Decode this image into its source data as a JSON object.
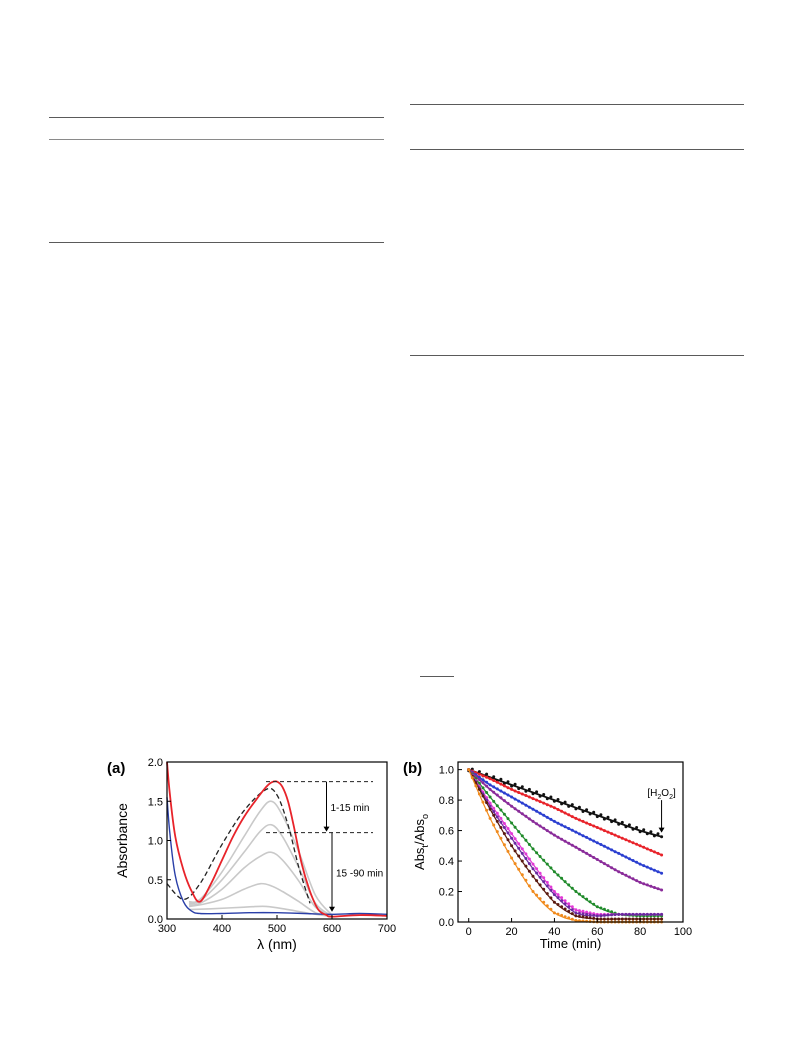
{
  "figure": {
    "panels": [
      {
        "label": "(a)",
        "chart_data": {
          "type": "line",
          "xlabel": "λ (nm)",
          "ylabel": "Absorbance",
          "xlim": [
            300,
            700
          ],
          "ylim": [
            0,
            2.0
          ],
          "xticks": [
            300,
            400,
            500,
            600,
            700
          ],
          "yticks": [
            0.0,
            0.5,
            1.0,
            1.5,
            2.0
          ],
          "annotations": [
            "1-15 min",
            "15 -90 min"
          ],
          "colors": {
            "final": "#e8232a",
            "blue": "#2a3fa8",
            "gray": "#c9c9c9",
            "dashed": "#222222"
          },
          "series": [
            {
              "style": "dashed",
              "x": [
                300,
                330,
                360,
                400,
                440,
                480,
                500,
                520,
                540,
                560
              ],
              "y": [
                0.45,
                0.25,
                0.45,
                0.95,
                1.38,
                1.65,
                1.58,
                1.2,
                0.65,
                0.2
              ]
            },
            {
              "style": "red",
              "x": [
                300,
                305,
                315,
                330,
                345,
                360,
                380,
                400,
                420,
                440,
                460,
                480,
                490,
                500,
                510,
                520,
                530,
                545,
                560,
                575,
                590,
                600,
                650,
                700
              ],
              "y": [
                2.0,
                1.6,
                1.05,
                0.62,
                0.35,
                0.22,
                0.45,
                0.75,
                1.05,
                1.3,
                1.5,
                1.68,
                1.74,
                1.75,
                1.68,
                1.5,
                1.2,
                0.7,
                0.35,
                0.12,
                0.05,
                0.03,
                0.05,
                0.04
              ]
            },
            {
              "style": "gray",
              "x": [
                340,
                360,
                400,
                440,
                470,
                490,
                510,
                540,
                570,
                600
              ],
              "y": [
                0.22,
                0.25,
                0.6,
                1.05,
                1.38,
                1.5,
                1.32,
                0.85,
                0.3,
                0.05
              ]
            },
            {
              "style": "gray",
              "x": [
                340,
                360,
                400,
                440,
                470,
                490,
                510,
                540,
                570,
                600
              ],
              "y": [
                0.2,
                0.23,
                0.5,
                0.85,
                1.12,
                1.2,
                1.05,
                0.65,
                0.2,
                0.04
              ]
            },
            {
              "style": "gray",
              "x": [
                340,
                360,
                400,
                440,
                470,
                490,
                510,
                540,
                570,
                600
              ],
              "y": [
                0.18,
                0.2,
                0.38,
                0.65,
                0.8,
                0.85,
                0.75,
                0.48,
                0.15,
                0.04
              ]
            },
            {
              "style": "gray",
              "x": [
                340,
                360,
                400,
                440,
                470,
                490,
                510,
                540,
                570,
                600
              ],
              "y": [
                0.16,
                0.18,
                0.25,
                0.38,
                0.45,
                0.42,
                0.35,
                0.22,
                0.08,
                0.03
              ]
            },
            {
              "style": "gray",
              "x": [
                340,
                380,
                440,
                480,
                520,
                560,
                600
              ],
              "y": [
                0.12,
                0.13,
                0.15,
                0.16,
                0.12,
                0.07,
                0.03
              ]
            },
            {
              "style": "blue",
              "x": [
                300,
                305,
                315,
                330,
                345,
                360,
                400,
                450,
                500,
                550,
                600,
                650,
                700
              ],
              "y": [
                1.55,
                1.1,
                0.55,
                0.22,
                0.1,
                0.07,
                0.07,
                0.08,
                0.08,
                0.07,
                0.06,
                0.07,
                0.06
              ]
            }
          ]
        }
      },
      {
        "label": "(b)",
        "chart_data": {
          "type": "scatter",
          "xlabel": "Time (min)",
          "ylabel_main": "Abs",
          "ylabel_sub1": "t",
          "ylabel_mid": "/Abs",
          "ylabel_sub2": "o",
          "xlim": [
            -5,
            100
          ],
          "ylim": [
            0,
            1.05
          ],
          "xticks": [
            0,
            20,
            40,
            60,
            80,
            100
          ],
          "yticks": [
            0.0,
            0.2,
            0.4,
            0.6,
            0.8,
            1.0
          ],
          "annotation": {
            "main": "[H",
            "sub1": "2",
            "mid": "O",
            "sub2": "2",
            "end": "]"
          },
          "series": [
            {
              "color": "#111111",
              "x": [
                0,
                10,
                20,
                30,
                40,
                50,
                60,
                70,
                80,
                90
              ],
              "y": [
                1.0,
                0.95,
                0.9,
                0.85,
                0.8,
                0.75,
                0.7,
                0.65,
                0.6,
                0.56
              ]
            },
            {
              "color": "#e8232a",
              "x": [
                0,
                10,
                20,
                30,
                40,
                50,
                60,
                70,
                80,
                90
              ],
              "y": [
                1.0,
                0.94,
                0.87,
                0.81,
                0.75,
                0.68,
                0.62,
                0.56,
                0.5,
                0.44
              ]
            },
            {
              "color": "#2b3fd0",
              "x": [
                0,
                10,
                20,
                30,
                40,
                50,
                60,
                70,
                80,
                90
              ],
              "y": [
                1.0,
                0.9,
                0.82,
                0.74,
                0.66,
                0.59,
                0.52,
                0.45,
                0.38,
                0.32
              ]
            },
            {
              "color": "#8a2c9a",
              "x": [
                0,
                10,
                20,
                30,
                40,
                50,
                60,
                70,
                80,
                90
              ],
              "y": [
                1.0,
                0.87,
                0.76,
                0.66,
                0.57,
                0.49,
                0.41,
                0.33,
                0.26,
                0.21
              ]
            },
            {
              "color": "#1f8a2a",
              "x": [
                0,
                10,
                20,
                30,
                40,
                50,
                60,
                70,
                80,
                90
              ],
              "y": [
                1.0,
                0.82,
                0.65,
                0.48,
                0.33,
                0.2,
                0.1,
                0.05,
                0.04,
                0.04
              ]
            },
            {
              "color": "#e23ad6",
              "x": [
                0,
                10,
                20,
                30,
                40,
                50,
                60,
                70,
                80,
                90
              ],
              "y": [
                1.0,
                0.78,
                0.58,
                0.38,
                0.2,
                0.08,
                0.05,
                0.05,
                0.05,
                0.05
              ]
            },
            {
              "color": "#6a2aa0",
              "x": [
                0,
                10,
                20,
                30,
                40,
                50,
                60,
                70,
                80,
                90
              ],
              "y": [
                1.0,
                0.76,
                0.55,
                0.35,
                0.18,
                0.06,
                0.04,
                0.05,
                0.05,
                0.05
              ]
            },
            {
              "color": "#5a1a10",
              "x": [
                0,
                10,
                20,
                30,
                40,
                50,
                60,
                70,
                80,
                90
              ],
              "y": [
                1.0,
                0.74,
                0.5,
                0.3,
                0.13,
                0.04,
                0.02,
                0.02,
                0.02,
                0.02
              ]
            },
            {
              "color": "#f08a1c",
              "x": [
                0,
                10,
                20,
                30,
                40,
                50,
                60,
                70,
                80,
                90
              ],
              "y": [
                1.0,
                0.68,
                0.42,
                0.2,
                0.06,
                0.01,
                0.0,
                0.0,
                0.0,
                0.0
              ]
            }
          ]
        }
      }
    ]
  }
}
